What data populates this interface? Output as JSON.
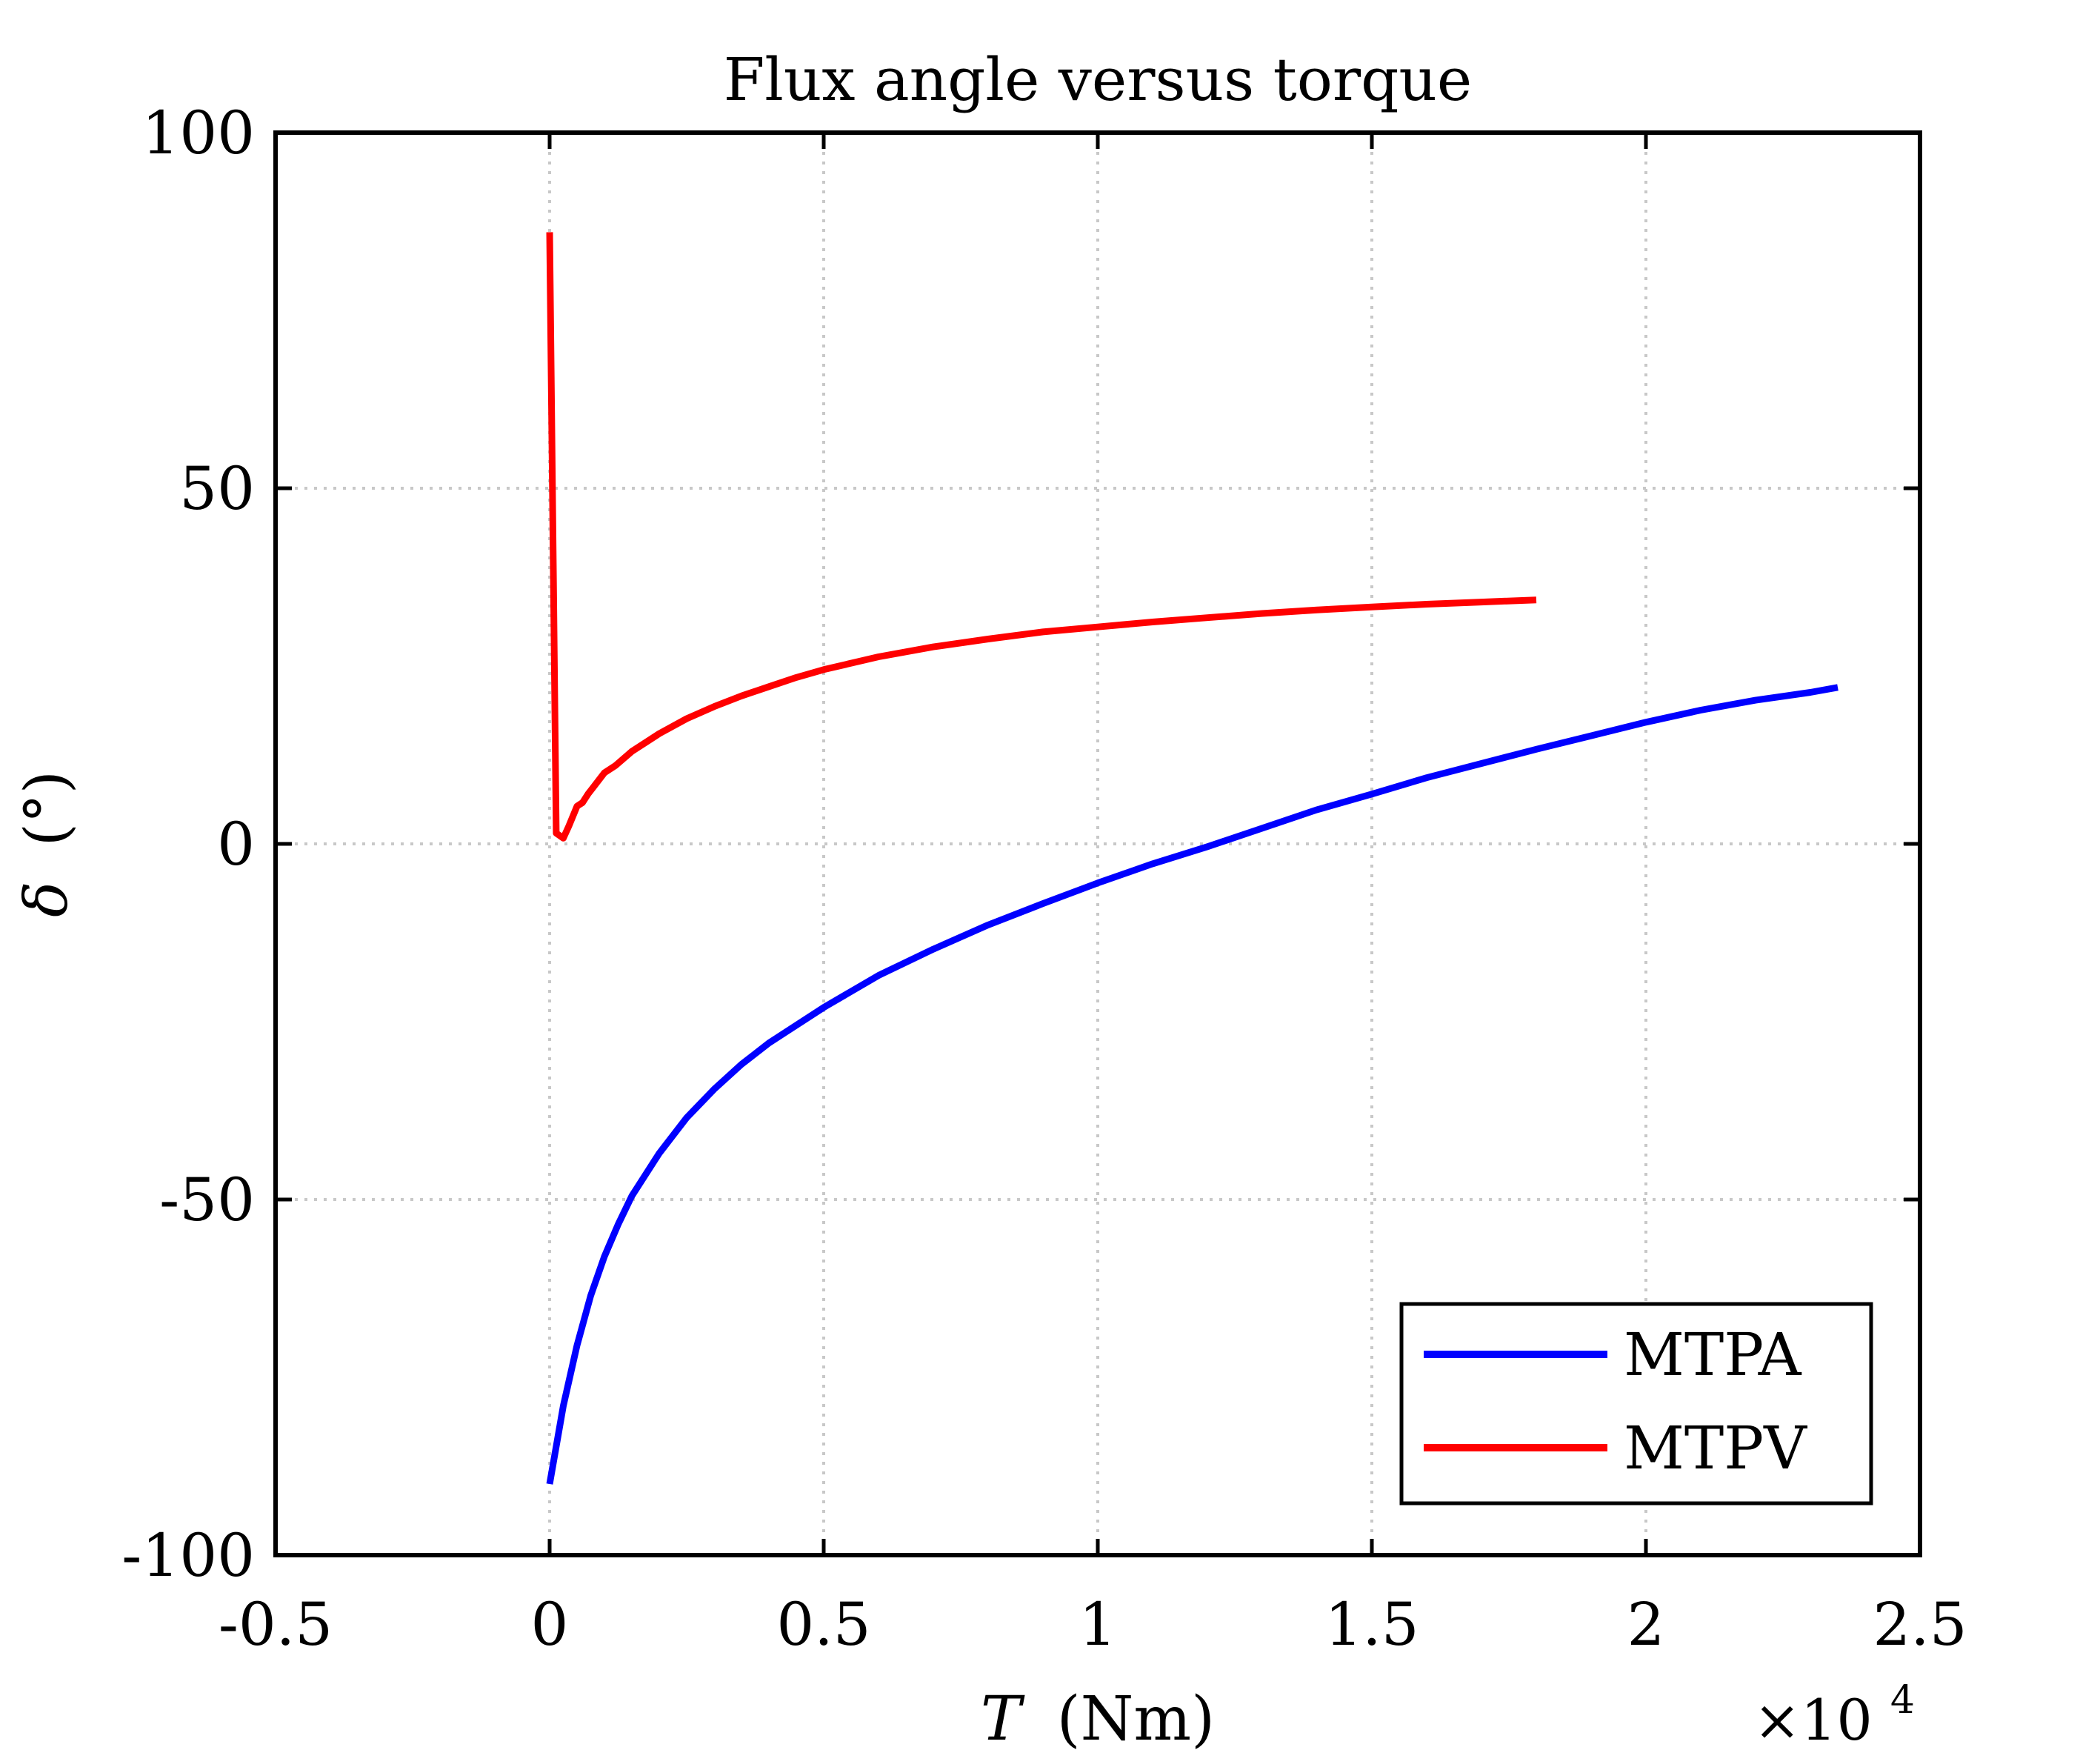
{
  "chart_data": {
    "type": "line",
    "title": "Flux angle versus torque",
    "xlabel_var": "T",
    "xlabel_unit": "(Nm)",
    "ylabel_var": "δ",
    "ylabel_unit": "(°)",
    "x_exponent_base": "×10",
    "x_exponent_power": "4",
    "xlim": [
      -5000,
      25000
    ],
    "ylim": [
      -100,
      100
    ],
    "xticks": [
      -5000,
      0,
      5000,
      10000,
      15000,
      20000,
      25000
    ],
    "xtick_labels": [
      "-0.5",
      "0",
      "0.5",
      "1",
      "1.5",
      "2",
      "2.5"
    ],
    "yticks": [
      -100,
      -50,
      0,
      50,
      100
    ],
    "ytick_labels": [
      "-100",
      "-50",
      "0",
      "50",
      "100"
    ],
    "grid": true,
    "legend_position": "bottom-right",
    "series": [
      {
        "name": "MTPA",
        "color": "#0000ff",
        "x": [
          0,
          250,
          500,
          750,
          1000,
          1250,
          1500,
          2000,
          2500,
          3000,
          3500,
          4000,
          5000,
          6000,
          7000,
          8000,
          9000,
          10000,
          11000,
          12000,
          13000,
          14000,
          15000,
          16000,
          17000,
          18000,
          19000,
          20000,
          21000,
          22000,
          23000,
          23500
        ],
        "y": [
          -90,
          -79,
          -70.5,
          -63.5,
          -58,
          -53.5,
          -49.5,
          -43.5,
          -38.5,
          -34.5,
          -31,
          -28,
          -23,
          -18.5,
          -14.8,
          -11.4,
          -8.4,
          -5.5,
          -2.8,
          -0.4,
          2.2,
          4.8,
          7,
          9.3,
          11.3,
          13.3,
          15.2,
          17.1,
          18.8,
          20.2,
          21.3,
          22
        ]
      },
      {
        "name": "MTPV",
        "color": "#ff0000",
        "x": [
          0,
          120,
          250,
          350,
          500,
          600,
          700,
          800,
          1000,
          1200,
          1500,
          1800,
          2000,
          2500,
          3000,
          3500,
          4000,
          4500,
          5000,
          6000,
          7000,
          8000,
          9000,
          10000,
          11000,
          12000,
          13000,
          14000,
          15000,
          16000,
          17000,
          18000
        ],
        "y": [
          86,
          1.5,
          0.8,
          2.5,
          5.3,
          5.8,
          7,
          8,
          10,
          11,
          13,
          14.5,
          15.5,
          17.6,
          19.3,
          20.8,
          22.1,
          23.4,
          24.5,
          26.3,
          27.7,
          28.8,
          29.8,
          30.5,
          31.2,
          31.8,
          32.4,
          32.9,
          33.3,
          33.7,
          34,
          34.3
        ]
      }
    ]
  }
}
